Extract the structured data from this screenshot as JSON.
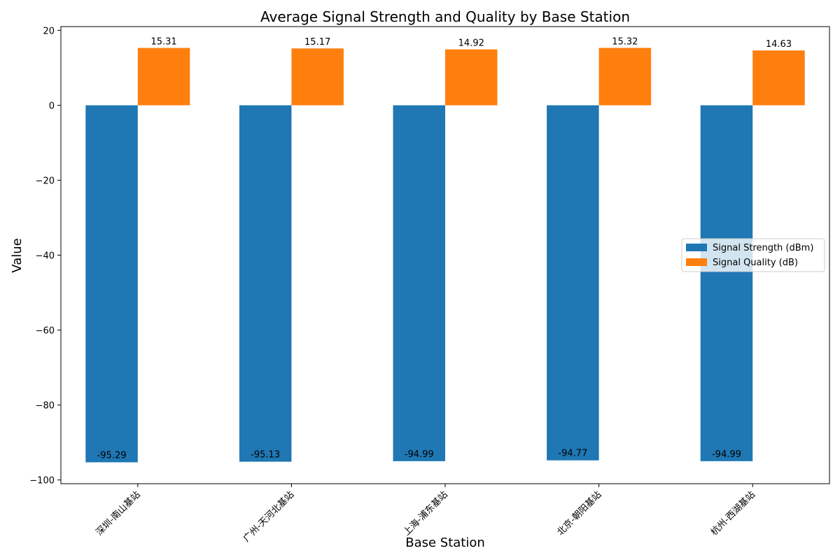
{
  "chart_data": {
    "type": "bar",
    "title": "Average Signal Strength and Quality by Base Station",
    "xlabel": "Base Station",
    "ylabel": "Value",
    "categories": [
      "深圳-南山基站",
      "广州-天河北基站",
      "上海-浦东基站",
      "北京-朝阳基站",
      "杭州-西湖基站"
    ],
    "series": [
      {
        "name": "Signal Strength (dBm)",
        "values": [
          -95.29,
          -95.13,
          -94.99,
          -94.77,
          -94.99
        ],
        "labels": [
          "-95.29",
          "-95.13",
          "-94.99",
          "-94.77",
          "-94.99"
        ],
        "color": "#1f77b4"
      },
      {
        "name": "Signal Quality (dB)",
        "values": [
          15.31,
          15.17,
          14.92,
          15.32,
          14.63
        ],
        "labels": [
          "15.31",
          "15.17",
          "14.92",
          "15.32",
          "14.63"
        ],
        "color": "#ff7f0e"
      }
    ],
    "ylim": [
      -101,
      21
    ],
    "yticks": [
      20,
      0,
      -20,
      -40,
      -60,
      -80,
      -100
    ],
    "ytick_labels": [
      "20",
      "0",
      "−20",
      "−40",
      "−60",
      "−80",
      "−100"
    ],
    "grid": false,
    "legend_position": "center-right"
  }
}
